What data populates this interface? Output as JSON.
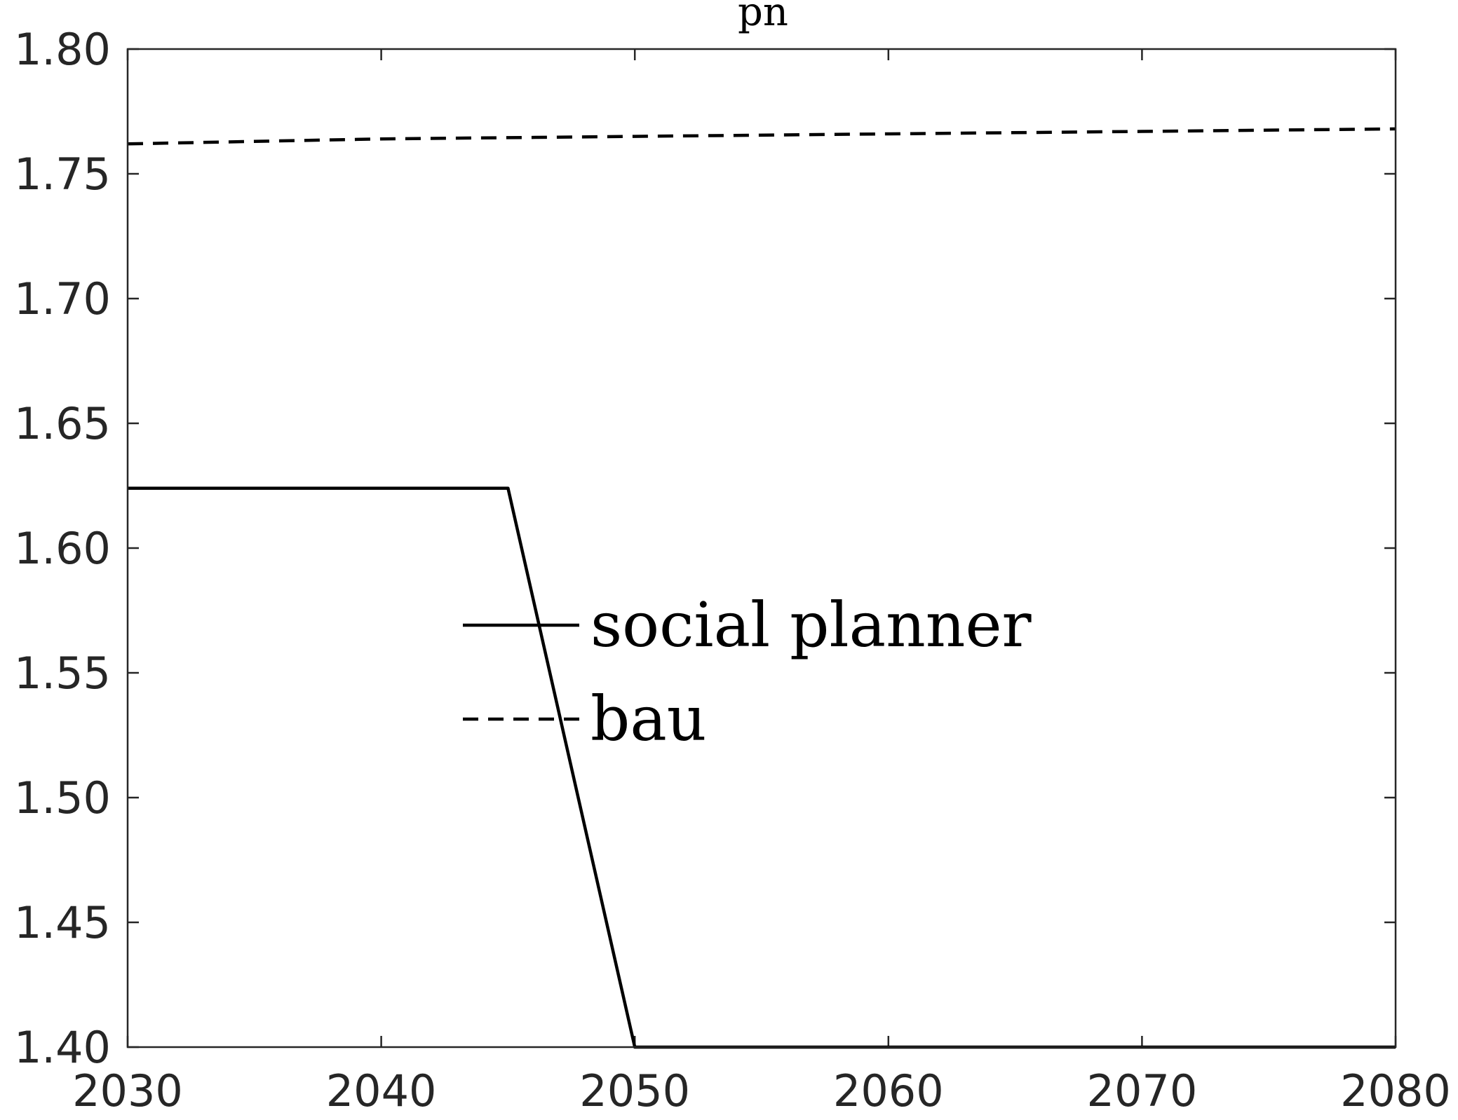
{
  "chart_data": {
    "type": "line",
    "title": "pn",
    "xlabel": "",
    "ylabel": "",
    "xlim": [
      2030,
      2080
    ],
    "ylim": [
      1.4,
      1.8
    ],
    "x_ticks": [
      "2030",
      "2040",
      "2050",
      "2060",
      "2070",
      "2080"
    ],
    "y_ticks": [
      "1.40",
      "1.45",
      "1.50",
      "1.55",
      "1.60",
      "1.65",
      "1.70",
      "1.75",
      "1.80"
    ],
    "grid": false,
    "legend_position": "center",
    "series": [
      {
        "name": "social planner",
        "style": "solid",
        "color": "#000000",
        "x": [
          2030,
          2045,
          2050,
          2080
        ],
        "y": [
          1.624,
          1.624,
          1.4,
          1.4
        ]
      },
      {
        "name": "bau",
        "style": "dashed",
        "color": "#000000",
        "x": [
          2030,
          2040,
          2050,
          2060,
          2070,
          2080
        ],
        "y": [
          1.762,
          1.764,
          1.765,
          1.766,
          1.767,
          1.768
        ]
      }
    ]
  }
}
